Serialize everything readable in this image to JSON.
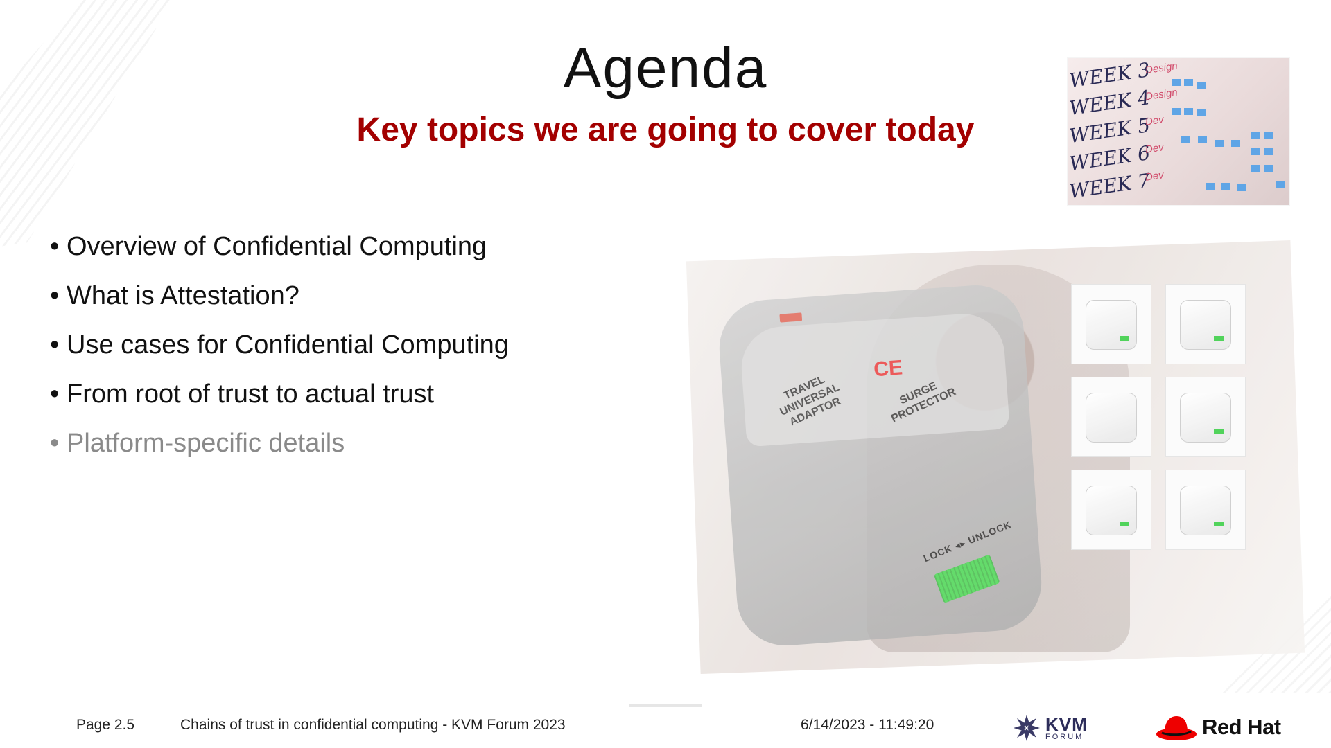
{
  "slide": {
    "title": "Agenda",
    "subtitle": "Key topics we are going to cover today"
  },
  "agenda": {
    "items": [
      {
        "label": "Overview of Confidential Computing",
        "state": "active"
      },
      {
        "label": "What is Attestation?",
        "state": "active"
      },
      {
        "label": "Use cases for Confidential Computing",
        "state": "active"
      },
      {
        "label": "From root of trust to actual trust",
        "state": "active"
      },
      {
        "label": "Platform-specific details",
        "state": "dimmed"
      }
    ],
    "bullet": "•"
  },
  "whiteboard": {
    "weeks": [
      "WEEK 3",
      "WEEK 4",
      "WEEK 5",
      "WEEK 6",
      "WEEK 7"
    ],
    "tags": [
      "Design",
      "Design",
      "Dev",
      "Dev",
      "Dev"
    ]
  },
  "illustration": {
    "adapter_label_left": "TRAVEL UNIVERSAL ADAPTOR",
    "adapter_label_right": "SURGE PROTECTOR",
    "adapter_ce": "CE",
    "adapter_lock": "LOCK ◂▸ UNLOCK"
  },
  "footer": {
    "page": "Page 2.5",
    "talk": "Chains of trust in confidential computing - KVM Forum 2023",
    "datetime": "6/14/2023 - 11:49:20",
    "kvm_logo_text": "KVM",
    "kvm_logo_sub": "FORUM",
    "redhat_logo_text": "Red Hat"
  },
  "colors": {
    "accent": "#a30000",
    "dimmed": "#8a8a8a",
    "text": "#111111"
  }
}
